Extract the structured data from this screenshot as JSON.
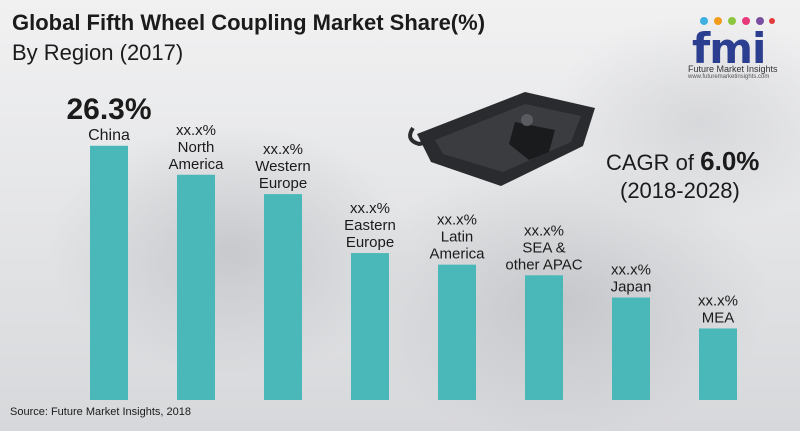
{
  "header": {
    "title": "Global Fifth Wheel Coupling  Market Share(%)",
    "subtitle": "By Region (2017)"
  },
  "logo": {
    "mark": "fmi",
    "name": "Future Market Insights",
    "url": "www.futuremarketinsights.com"
  },
  "cagr": {
    "prefix": "CAGR of ",
    "value": "6.0%",
    "period": "(2018-2028)"
  },
  "source": "Source: Future Market Insights, 2018",
  "colors": {
    "bar": "#4ab8b8",
    "text": "#1b1b1b",
    "logo": "#2c3e8f"
  },
  "chart_data": {
    "type": "bar",
    "title": "Global Fifth Wheel Coupling  Market Share(%)",
    "categories": [
      "China",
      "North America",
      "Western Europe",
      "Eastern Europe",
      "Latin America",
      "SEA & other APAC",
      "Japan",
      "MEA"
    ],
    "category_lines": [
      [
        "China"
      ],
      [
        "North",
        "America"
      ],
      [
        "Western",
        "Europe"
      ],
      [
        "Eastern",
        "Europe"
      ],
      [
        "Latin",
        "America"
      ],
      [
        "SEA &",
        "other APAC"
      ],
      [
        "Japan"
      ],
      [
        "MEA"
      ]
    ],
    "value_labels": [
      "26.3%",
      "xx.x%",
      "xx.x%",
      "xx.x%",
      "xx.x%",
      "xx.x%",
      "xx.x%",
      "xx.x%"
    ],
    "values": [
      26.3,
      23.3,
      21.3,
      15.2,
      14.0,
      12.9,
      10.6,
      7.4
    ],
    "ylim": [
      0,
      30
    ],
    "grid": false
  }
}
